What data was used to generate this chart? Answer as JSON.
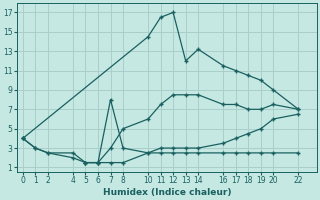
{
  "xlabel": "Humidex (Indice chaleur)",
  "xlim": [
    -0.5,
    23.5
  ],
  "ylim": [
    0.5,
    18
  ],
  "xticks": [
    0,
    1,
    2,
    4,
    5,
    6,
    7,
    8,
    10,
    11,
    12,
    13,
    14,
    16,
    17,
    18,
    19,
    20,
    22
  ],
  "yticks": [
    1,
    3,
    5,
    7,
    9,
    11,
    13,
    15,
    17
  ],
  "bg_color": "#c5e8e2",
  "grid_color": "#aacfca",
  "line_color": "#1a6060",
  "curve_upper_x": [
    0,
    10,
    11,
    12,
    13,
    14,
    16,
    17,
    18,
    19,
    20,
    22
  ],
  "curve_upper_y": [
    4,
    14.5,
    16.5,
    17,
    12,
    13.2,
    11.5,
    11,
    10.5,
    10,
    9,
    7
  ],
  "curve_mid_x": [
    0,
    1,
    2,
    4,
    5,
    6,
    7,
    8,
    10,
    11,
    12,
    13,
    14,
    16,
    17,
    18,
    19,
    20,
    22
  ],
  "curve_mid_y": [
    4,
    3,
    2.5,
    2.5,
    1.5,
    1.5,
    3,
    5,
    6,
    7.5,
    8.5,
    8.5,
    8.5,
    7.5,
    7.5,
    7,
    7,
    7.5,
    7
  ],
  "curve_low_x": [
    0,
    1,
    2,
    4,
    5,
    6,
    7,
    8,
    10,
    11,
    12,
    13,
    14,
    16,
    17,
    18,
    19,
    20,
    22
  ],
  "curve_low_y": [
    4,
    3,
    2.5,
    2,
    1.5,
    1.5,
    1.5,
    1.5,
    2.5,
    3,
    3,
    3,
    3,
    3.5,
    4,
    4.5,
    5,
    6,
    6.5
  ],
  "curve_spike_x": [
    5,
    6,
    7,
    8,
    10,
    11,
    12,
    13,
    14,
    16,
    17,
    18,
    19,
    20,
    22
  ],
  "curve_spike_y": [
    1.5,
    1.5,
    8.0,
    3.0,
    2.5,
    2.5,
    2.5,
    2.5,
    2.5,
    2.5,
    2.5,
    2.5,
    2.5,
    2.5,
    2.5
  ]
}
